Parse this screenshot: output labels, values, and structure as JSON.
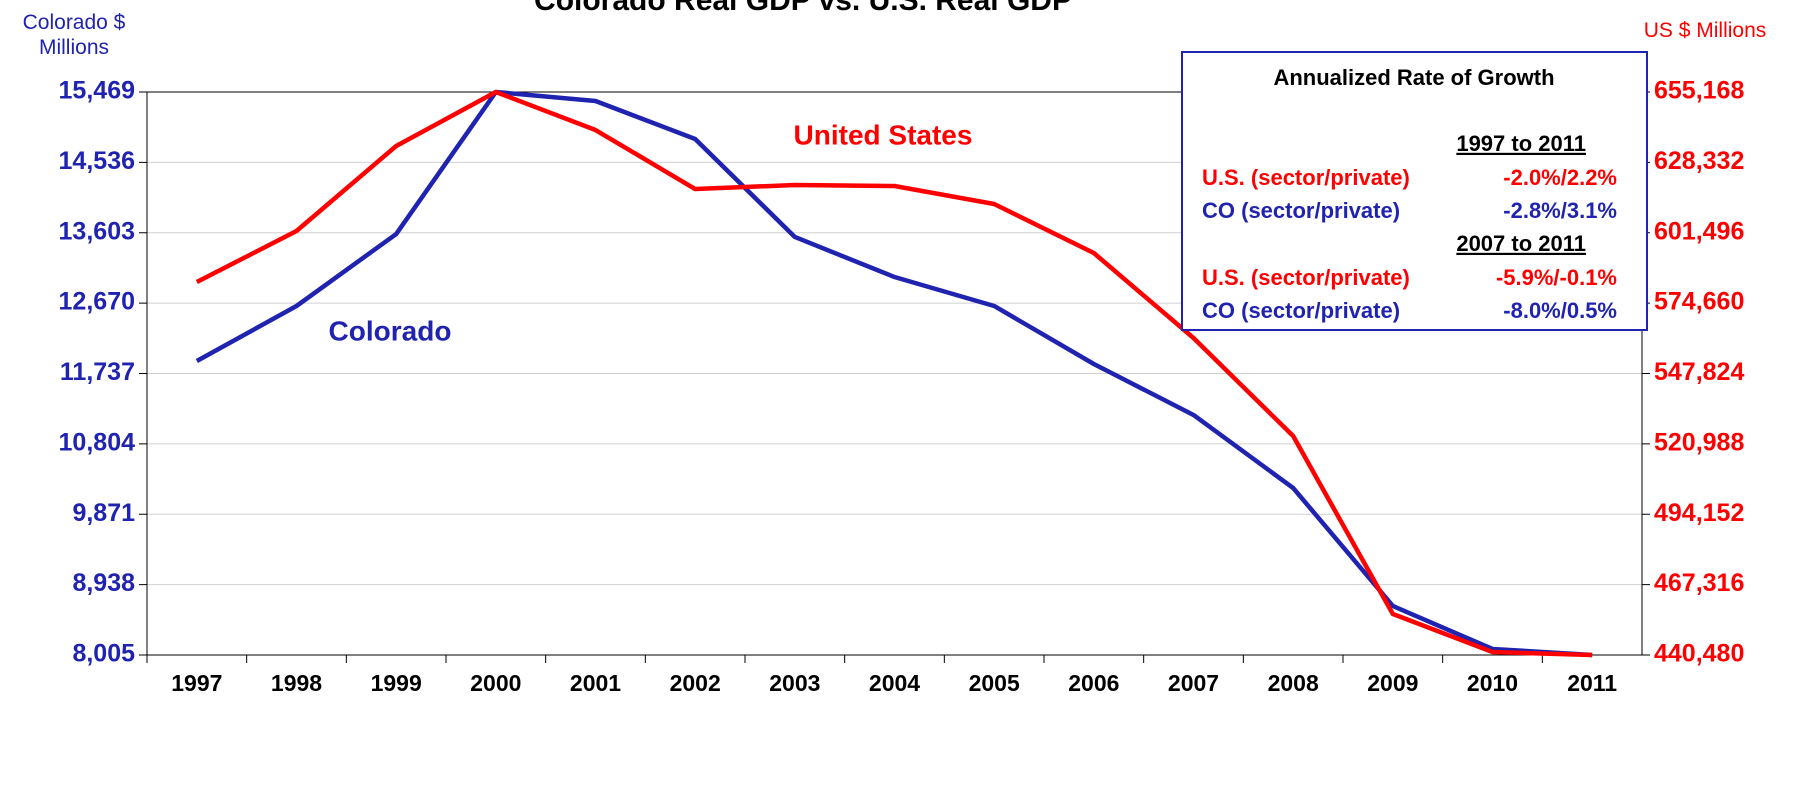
{
  "chart_data": {
    "type": "line",
    "title": "Colorado Real GDP  vs. U.S. Real GDP",
    "y_label": "Colorado $ Millions",
    "y2_label": "US $ Millions",
    "categories": [
      "1997",
      "1998",
      "1999",
      "2000",
      "2001",
      "2002",
      "2003",
      "2004",
      "2005",
      "2006",
      "2007",
      "2008",
      "2009",
      "2010",
      "2011"
    ],
    "series": [
      {
        "name": "Colorado",
        "color": "#1f23b0",
        "values": [
          11903,
          12632,
          13586,
          15469,
          15350,
          14846,
          13547,
          13016,
          12632,
          11863,
          11187,
          10219,
          8655,
          8085,
          8005
        ]
      },
      {
        "name": "United States",
        "color": "#ff0000",
        "axis": "y2",
        "values": [
          582710,
          602156,
          634568,
          655168,
          640669,
          618172,
          619697,
          619316,
          612453,
          593768,
          561356,
          523987,
          456114,
          441624,
          440480
        ]
      }
    ],
    "ylim": [
      8005,
      15469
    ],
    "yticks": [
      {
        "value": 8005,
        "label": "8,005"
      },
      {
        "value": 8938,
        "label": "8,938"
      },
      {
        "value": 9871,
        "label": "9,871"
      },
      {
        "value": 10804,
        "label": "10,804"
      },
      {
        "value": 11737,
        "label": "11,737"
      },
      {
        "value": 12670,
        "label": "12,670"
      },
      {
        "value": 13603,
        "label": "13,603"
      },
      {
        "value": 14536,
        "label": "14,536"
      },
      {
        "value": 15469,
        "label": "15,469"
      }
    ],
    "y2lim": [
      440480,
      655168
    ],
    "y2ticks": [
      {
        "value": 440480,
        "label": "440,480"
      },
      {
        "value": 467316,
        "label": "467,316"
      },
      {
        "value": 494152,
        "label": "494,152"
      },
      {
        "value": 520988,
        "label": "520,988"
      },
      {
        "value": 547824,
        "label": "547,824"
      },
      {
        "value": 574660,
        "label": "574,660"
      },
      {
        "value": 601496,
        "label": "601,496"
      },
      {
        "value": 628332,
        "label": "628,332"
      },
      {
        "value": 655168,
        "label": "655,168"
      }
    ],
    "grid": true,
    "growth_box": {
      "title": "Annualized Rate of Growth",
      "sections": [
        {
          "period": "1997 to 2011",
          "rows": [
            {
              "label": "U.S. (sector/private)",
              "value": "-2.0%/2.2%",
              "color": "#ff0000"
            },
            {
              "label": "CO (sector/private)",
              "value": "-2.8%/3.1%",
              "color": "#1f23b0"
            }
          ]
        },
        {
          "period": "2007 to 2011",
          "rows": [
            {
              "label": "U.S. (sector/private)",
              "value": "-5.9%/-0.1%",
              "color": "#ff0000"
            },
            {
              "label": "CO (sector/private)",
              "value": "-8.0%/0.5%",
              "color": "#1f23b0"
            }
          ]
        }
      ]
    }
  }
}
